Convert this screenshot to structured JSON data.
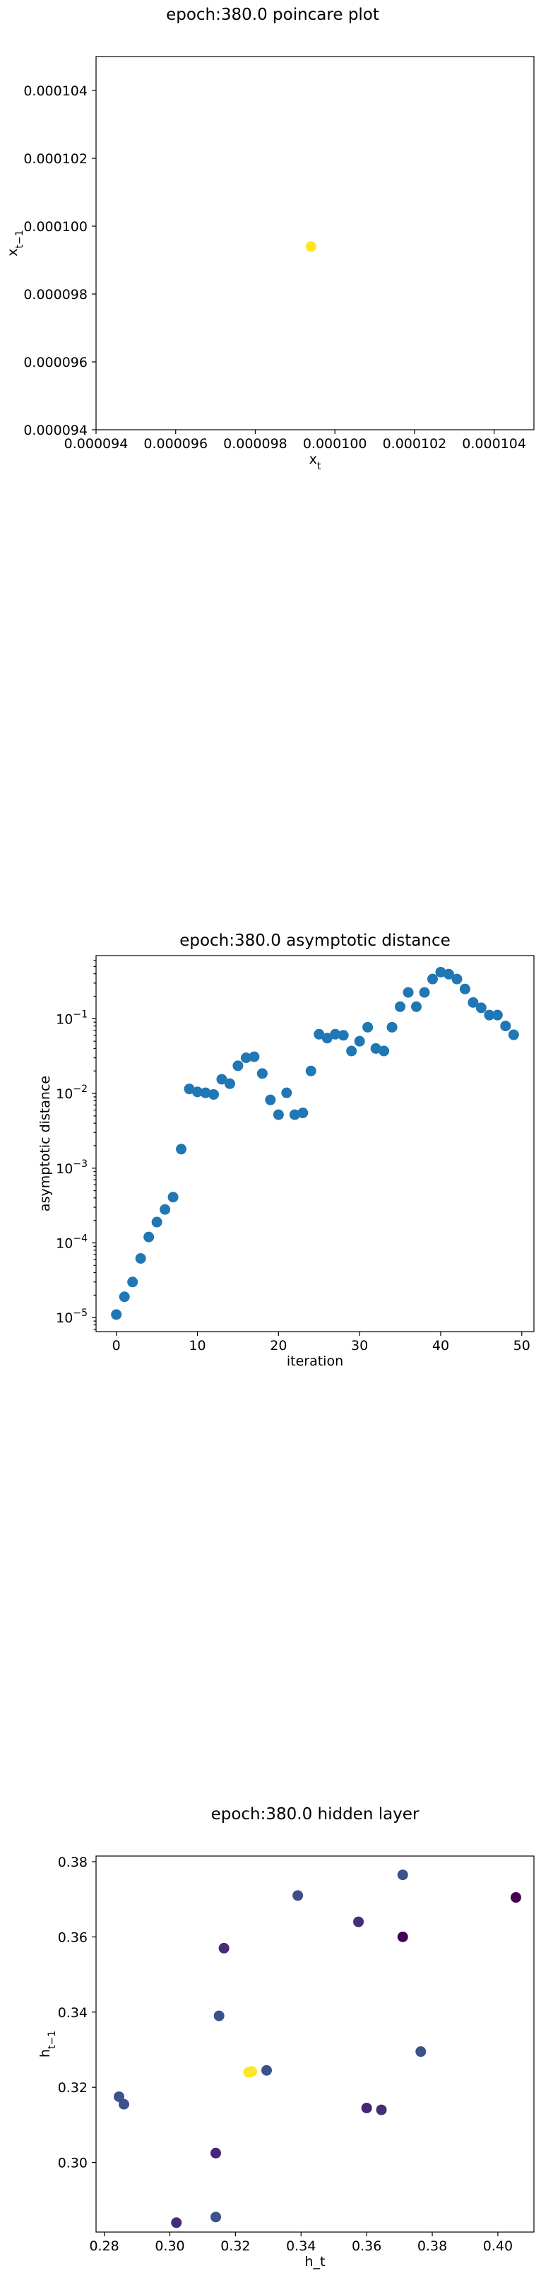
{
  "chart_data": [
    {
      "type": "scatter",
      "title": "epoch:380.0 poincare plot",
      "xlabel": "x_t",
      "ylabel": "x_{t−1}",
      "xlim": [
        9.4e-05,
        0.000105
      ],
      "ylim": [
        9.4e-05,
        0.000105
      ],
      "xticks": [
        "0.000094",
        "0.000096",
        "0.000098",
        "0.000100",
        "0.000102",
        "0.000104"
      ],
      "yticks": [
        "0.000094",
        "0.000096",
        "0.000098",
        "0.000100",
        "0.000102",
        "0.000104"
      ],
      "points": [
        {
          "x": 9.94e-05,
          "y": 9.94e-05
        }
      ],
      "marker_color": "#fde725",
      "grid": false
    },
    {
      "type": "scatter",
      "title": "epoch:380.0 asymptotic distance",
      "xlabel": "iteration",
      "ylabel": "asymptotic distance",
      "xlim": [
        -2.5,
        51.5
      ],
      "ylim": [
        6.5e-06,
        0.7
      ],
      "yscale": "log",
      "xticks": [
        "0",
        "10",
        "20",
        "30",
        "40",
        "50"
      ],
      "yticks": [
        "10^-5",
        "10^-4",
        "10^-3",
        "10^-2",
        "10^-1"
      ],
      "x": [
        0,
        1,
        2,
        3,
        4,
        5,
        6,
        7,
        8,
        9,
        10,
        11,
        12,
        13,
        14,
        15,
        16,
        17,
        18,
        19,
        20,
        21,
        22,
        23,
        24,
        25,
        26,
        27,
        28,
        29,
        30,
        31,
        32,
        33,
        34,
        35,
        36,
        37,
        38,
        39,
        40,
        41,
        42,
        43,
        44,
        45,
        46,
        47,
        48,
        49
      ],
      "values": [
        1.1e-05,
        1.9e-05,
        3e-05,
        6.2e-05,
        0.00012,
        0.00019,
        0.00028,
        0.00041,
        0.0018,
        0.0115,
        0.0105,
        0.0102,
        0.0097,
        0.0155,
        0.0135,
        0.0235,
        0.03,
        0.031,
        0.0185,
        0.0082,
        0.0052,
        0.0102,
        0.0052,
        0.0055,
        0.02,
        0.062,
        0.055,
        0.062,
        0.06,
        0.037,
        0.05,
        0.077,
        0.04,
        0.037,
        0.077,
        0.145,
        0.225,
        0.145,
        0.225,
        0.34,
        0.42,
        0.395,
        0.34,
        0.25,
        0.165,
        0.14,
        0.112,
        0.112,
        0.08,
        0.061
      ],
      "marker_color": "#1f77b4",
      "grid": false
    },
    {
      "type": "scatter",
      "title": "epoch:380.0 hidden layer",
      "xlabel": "h_t",
      "ylabel": "h_{t−1}",
      "xlim": [
        0.2775,
        0.411
      ],
      "ylim": [
        0.2815,
        0.3815
      ],
      "xticks": [
        "0.28",
        "0.30",
        "0.32",
        "0.34",
        "0.36",
        "0.38",
        "0.40"
      ],
      "yticks": [
        "0.30",
        "0.32",
        "0.34",
        "0.36",
        "0.38"
      ],
      "points": [
        {
          "x": 0.2845,
          "y": 0.3175,
          "color": "#3b528b"
        },
        {
          "x": 0.286,
          "y": 0.3155,
          "color": "#3b528b"
        },
        {
          "x": 0.302,
          "y": 0.284,
          "color": "#472c7a"
        },
        {
          "x": 0.314,
          "y": 0.2855,
          "color": "#3b528b"
        },
        {
          "x": 0.314,
          "y": 0.3025,
          "color": "#482576"
        },
        {
          "x": 0.315,
          "y": 0.339,
          "color": "#3b528b"
        },
        {
          "x": 0.3165,
          "y": 0.357,
          "color": "#472c7a"
        },
        {
          "x": 0.324,
          "y": 0.324,
          "color": "#fde725"
        },
        {
          "x": 0.325,
          "y": 0.3242,
          "color": "#fde725"
        },
        {
          "x": 0.3295,
          "y": 0.3245,
          "color": "#3b528b"
        },
        {
          "x": 0.339,
          "y": 0.371,
          "color": "#3e4c8a"
        },
        {
          "x": 0.3575,
          "y": 0.364,
          "color": "#472c7a"
        },
        {
          "x": 0.36,
          "y": 0.3145,
          "color": "#482576"
        },
        {
          "x": 0.3645,
          "y": 0.314,
          "color": "#472c7a"
        },
        {
          "x": 0.371,
          "y": 0.3765,
          "color": "#3b528b"
        },
        {
          "x": 0.371,
          "y": 0.36,
          "color": "#440154"
        },
        {
          "x": 0.3765,
          "y": 0.3295,
          "color": "#3b528b"
        },
        {
          "x": 0.4055,
          "y": 0.3705,
          "color": "#440154"
        }
      ],
      "grid": false
    }
  ]
}
